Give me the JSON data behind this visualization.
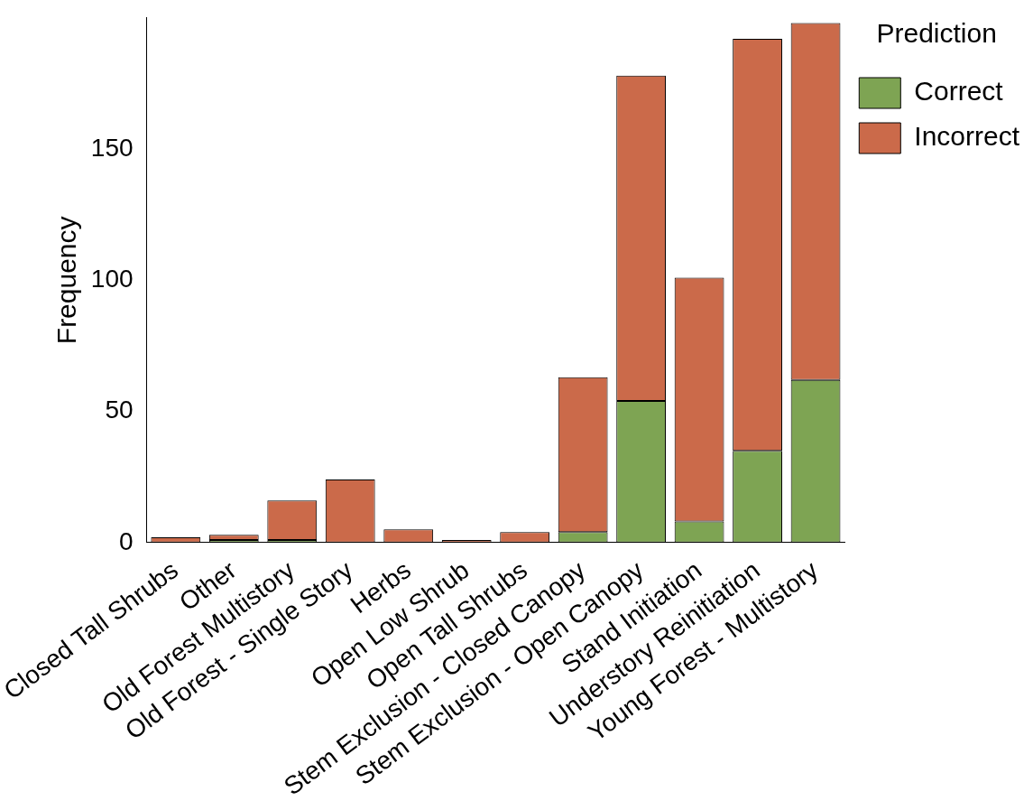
{
  "chart_data": {
    "type": "bar",
    "ylabel": "Frequency",
    "legend_title": "Prediction",
    "legend": "top right",
    "stacked": true,
    "categories": [
      "Closed Tall Shrubs",
      "Other",
      "Old Forest Multistory",
      "Old Forest - Single Story",
      "Herbs",
      "Open Low Shrub",
      "Open Tall Shrubs",
      "Stem Exclusion - Closed Canopy",
      "Stem Exclusion - Open Canopy",
      "Stand Initiation",
      "Understory Reinitiation",
      "Young Forest - Multistory"
    ],
    "series": [
      {
        "name": "Correct",
        "color": "#7ea453",
        "values": [
          0,
          1,
          1,
          0,
          0,
          0,
          0,
          4,
          54,
          8,
          35,
          62
        ]
      },
      {
        "name": "Incorrect",
        "color": "#cb6a4a",
        "values": [
          2,
          2,
          15,
          24,
          5,
          1,
          4,
          59,
          124,
          93,
          157,
          136
        ]
      }
    ],
    "ylim": [
      0,
      200
    ],
    "yticks": [
      0,
      50,
      100,
      150
    ],
    "grid": false
  }
}
